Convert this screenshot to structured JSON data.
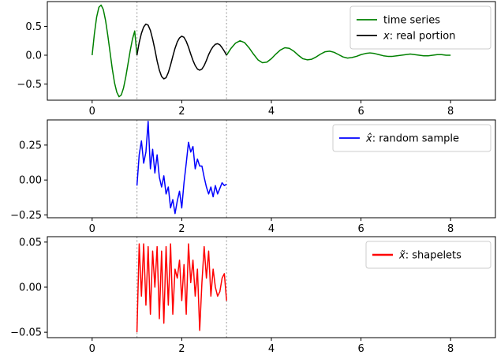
{
  "chart_data": [
    {
      "type": "line",
      "xlim": [
        -1,
        9
      ],
      "ylim": [
        -0.78,
        0.93
      ],
      "xticks": [
        0,
        2,
        4,
        6,
        8
      ],
      "yticks": [
        -0.5,
        0.0,
        0.5
      ],
      "ytick_labels": [
        "−0.5",
        "0.0",
        "0.5"
      ],
      "xtick_labels": [
        "0",
        "2",
        "4",
        "6",
        "8"
      ],
      "vlines": [
        1,
        3
      ],
      "legend": "top-right",
      "series": [
        {
          "name": "time series",
          "color": "#008000",
          "x": [
            0.0,
            0.05,
            0.1,
            0.15,
            0.2,
            0.25,
            0.3,
            0.35,
            0.4,
            0.45,
            0.5,
            0.55,
            0.6,
            0.65,
            0.7,
            0.75,
            0.8,
            0.85,
            0.9,
            0.95,
            1.0,
            3.0,
            3.1,
            3.2,
            3.3,
            3.4,
            3.5,
            3.6,
            3.7,
            3.8,
            3.9,
            4.0,
            4.1,
            4.2,
            4.3,
            4.4,
            4.5,
            4.6,
            4.7,
            4.8,
            4.9,
            5.0,
            5.1,
            5.2,
            5.3,
            5.4,
            5.5,
            5.6,
            5.7,
            5.8,
            5.9,
            6.0,
            6.1,
            6.2,
            6.3,
            6.4,
            6.5,
            6.6,
            6.7,
            6.8,
            6.9,
            7.0,
            7.1,
            7.2,
            7.3,
            7.4,
            7.5,
            7.6,
            7.7,
            7.8,
            7.9,
            8.0
          ],
          "y": [
            0.0,
            0.37,
            0.66,
            0.83,
            0.87,
            0.79,
            0.6,
            0.34,
            0.05,
            -0.24,
            -0.48,
            -0.64,
            -0.72,
            -0.69,
            -0.57,
            -0.38,
            -0.15,
            0.08,
            0.28,
            0.42,
            0.0,
            0.0,
            0.12,
            0.21,
            0.25,
            0.22,
            0.13,
            0.02,
            -0.08,
            -0.13,
            -0.12,
            -0.06,
            0.02,
            0.09,
            0.13,
            0.12,
            0.07,
            0.0,
            -0.06,
            -0.08,
            -0.07,
            -0.03,
            0.02,
            0.06,
            0.07,
            0.05,
            0.01,
            -0.03,
            -0.05,
            -0.04,
            -0.02,
            0.01,
            0.03,
            0.04,
            0.03,
            0.01,
            -0.01,
            -0.02,
            -0.02,
            -0.01,
            0.0,
            0.01,
            0.02,
            0.01,
            0.0,
            -0.01,
            -0.01,
            0.0,
            0.01,
            0.01,
            0.0,
            0.0
          ]
        },
        {
          "name": "x: real portion",
          "name_math": "x",
          "name_rest": ": real portion",
          "color": "#000000",
          "x": [
            1.0,
            1.05,
            1.1,
            1.15,
            1.2,
            1.25,
            1.3,
            1.35,
            1.4,
            1.45,
            1.5,
            1.55,
            1.6,
            1.65,
            1.7,
            1.75,
            1.8,
            1.85,
            1.9,
            1.95,
            2.0,
            2.05,
            2.1,
            2.15,
            2.2,
            2.25,
            2.3,
            2.35,
            2.4,
            2.45,
            2.5,
            2.55,
            2.6,
            2.65,
            2.7,
            2.75,
            2.8,
            2.85,
            2.9,
            2.95,
            3.0
          ],
          "y": [
            0.0,
            0.22,
            0.38,
            0.49,
            0.54,
            0.52,
            0.43,
            0.28,
            0.1,
            -0.1,
            -0.26,
            -0.37,
            -0.41,
            -0.39,
            -0.3,
            -0.17,
            -0.02,
            0.12,
            0.23,
            0.3,
            0.33,
            0.31,
            0.24,
            0.14,
            0.02,
            -0.09,
            -0.18,
            -0.24,
            -0.26,
            -0.24,
            -0.18,
            -0.09,
            0.01,
            0.09,
            0.15,
            0.19,
            0.2,
            0.18,
            0.13,
            0.07,
            0.0
          ]
        }
      ]
    },
    {
      "type": "line",
      "xlim": [
        -1,
        9
      ],
      "ylim": [
        -0.27,
        0.43
      ],
      "xticks": [
        0,
        2,
        4,
        6,
        8
      ],
      "yticks": [
        -0.25,
        0.0,
        0.25
      ],
      "ytick_labels": [
        "−0.25",
        "0.00",
        "0.25"
      ],
      "xtick_labels": [
        "0",
        "2",
        "4",
        "6",
        "8"
      ],
      "vlines": [
        1,
        3
      ],
      "legend": "top-right",
      "series": [
        {
          "name": "x̂: random sample",
          "name_math": "x̂",
          "name_rest": ": random sample",
          "color": "#0000ff",
          "x": [
            1.0,
            1.05,
            1.1,
            1.15,
            1.2,
            1.25,
            1.3,
            1.35,
            1.4,
            1.45,
            1.5,
            1.55,
            1.6,
            1.65,
            1.7,
            1.75,
            1.8,
            1.85,
            1.9,
            1.95,
            2.0,
            2.05,
            2.1,
            2.15,
            2.2,
            2.25,
            2.3,
            2.35,
            2.4,
            2.45,
            2.5,
            2.55,
            2.6,
            2.65,
            2.7,
            2.75,
            2.8,
            2.85,
            2.9,
            2.95,
            3.0
          ],
          "y": [
            -0.04,
            0.18,
            0.28,
            0.12,
            0.2,
            0.42,
            0.08,
            0.22,
            0.05,
            0.18,
            0.02,
            -0.05,
            0.03,
            -0.1,
            -0.05,
            -0.2,
            -0.14,
            -0.24,
            -0.15,
            -0.08,
            -0.2,
            -0.02,
            0.12,
            0.27,
            0.2,
            0.24,
            0.08,
            0.15,
            0.1,
            0.1,
            0.02,
            -0.05,
            -0.1,
            -0.05,
            -0.12,
            -0.04,
            -0.1,
            -0.06,
            -0.02,
            -0.04,
            -0.03
          ]
        }
      ]
    },
    {
      "type": "line",
      "xlim": [
        -1,
        9
      ],
      "ylim": [
        -0.056,
        0.056
      ],
      "xticks": [
        0,
        2,
        4,
        6,
        8
      ],
      "yticks": [
        -0.05,
        0.0,
        0.05
      ],
      "ytick_labels": [
        "−0.05",
        "0.00",
        "0.05"
      ],
      "xtick_labels": [
        "0",
        "2",
        "4",
        "6",
        "8"
      ],
      "vlines": [
        1,
        3
      ],
      "legend": "top-right",
      "series": [
        {
          "name": "x̃: shapelets",
          "name_math": "x̃",
          "name_rest": ": shapelets",
          "color": "#ff0000",
          "x": [
            1.0,
            1.05,
            1.1,
            1.15,
            1.2,
            1.25,
            1.3,
            1.35,
            1.4,
            1.45,
            1.5,
            1.55,
            1.6,
            1.65,
            1.7,
            1.75,
            1.8,
            1.85,
            1.9,
            1.95,
            2.0,
            2.05,
            2.1,
            2.15,
            2.2,
            2.25,
            2.3,
            2.35,
            2.4,
            2.45,
            2.5,
            2.55,
            2.6,
            2.65,
            2.7,
            2.75,
            2.8,
            2.85,
            2.9,
            2.95,
            3.0
          ],
          "y": [
            -0.05,
            0.048,
            -0.01,
            0.048,
            -0.02,
            0.045,
            -0.03,
            0.04,
            0.0,
            0.045,
            -0.035,
            0.04,
            -0.04,
            0.045,
            -0.02,
            0.048,
            -0.03,
            0.02,
            0.01,
            0.03,
            -0.015,
            0.025,
            -0.03,
            0.048,
            0.005,
            0.03,
            -0.01,
            0.02,
            -0.048,
            0.005,
            0.045,
            0.01,
            0.04,
            -0.01,
            0.02,
            0.0,
            -0.01,
            -0.005,
            0.01,
            0.015,
            -0.015
          ]
        }
      ]
    }
  ]
}
